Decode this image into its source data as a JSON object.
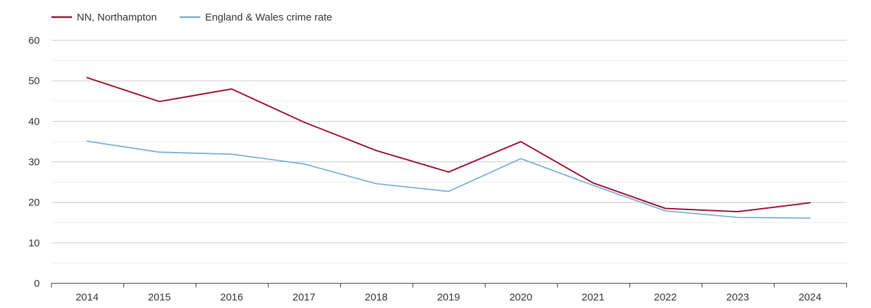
{
  "chart_data": {
    "type": "line",
    "title": "",
    "xlabel": "",
    "ylabel": "",
    "categories": [
      "2014",
      "2015",
      "2016",
      "2017",
      "2018",
      "2019",
      "2020",
      "2021",
      "2022",
      "2023",
      "2024"
    ],
    "y_ticks": [
      "0",
      "10",
      "20",
      "30",
      "40",
      "50",
      "60"
    ],
    "ylim": [
      0,
      60
    ],
    "grid": true,
    "legend_position": "top-left",
    "series": [
      {
        "name": "NN, Northampton",
        "color": "#9b0f34",
        "values": [
          50.8,
          44.9,
          48.0,
          39.8,
          32.8,
          27.5,
          35.0,
          24.8,
          18.5,
          17.7,
          19.9
        ]
      },
      {
        "name": "England & Wales crime rate",
        "color": "#7aafd6",
        "values": [
          35.1,
          32.4,
          31.9,
          29.5,
          24.6,
          22.7,
          30.8,
          24.2,
          17.9,
          16.3,
          16.1
        ]
      }
    ]
  }
}
